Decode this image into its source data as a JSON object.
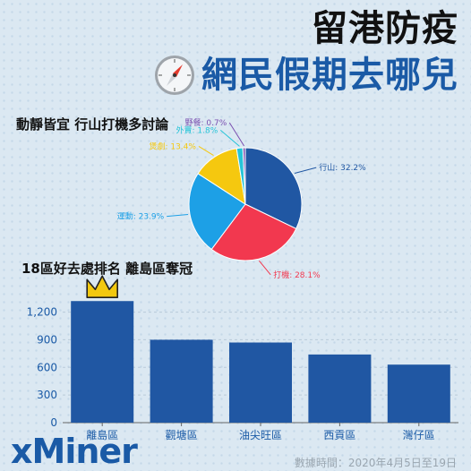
{
  "header": {
    "title_line1": "留港防疫",
    "title_line2": "網民假期去哪兒"
  },
  "icon": "compass-icon",
  "colors": {
    "accent": "#1a5aa6",
    "bar": "#2057a3",
    "crown": "#f2c80f"
  },
  "chart_data": [
    {
      "type": "pie",
      "title": "動靜皆宜 行山打機多討論",
      "slices": [
        {
          "label": "行山",
          "value": 32.2,
          "display": "行山: 32.2%",
          "color": "#2057a3"
        },
        {
          "label": "打機",
          "value": 28.1,
          "display": "打機: 28.1%",
          "color": "#f2384f"
        },
        {
          "label": "運動",
          "value": 23.9,
          "display": "運動: 23.9%",
          "color": "#1da0e6"
        },
        {
          "label": "煲劇",
          "value": 13.4,
          "display": "煲劇: 13.4%",
          "color": "#f5c80f"
        },
        {
          "label": "外賣",
          "value": 1.8,
          "display": "外賣: 1.8%",
          "color": "#26c4d8"
        },
        {
          "label": "野餐",
          "value": 0.7,
          "display": "野餐: 0.7%",
          "color": "#7a4fb0"
        }
      ]
    },
    {
      "type": "bar",
      "title": "18區好去處排名 離島區奪冠",
      "categories": [
        "離島區",
        "觀塘區",
        "油尖旺區",
        "西貢區",
        "灣仔區"
      ],
      "values": [
        1320,
        900,
        870,
        740,
        630
      ],
      "ylim": [
        0,
        1400
      ],
      "yticks": [
        0,
        300,
        600,
        900,
        1200
      ],
      "ytick_labels": [
        "0",
        "300",
        "600",
        "900",
        "1,200"
      ],
      "grid": true
    }
  ],
  "footer": {
    "brand": "xMiner",
    "note": "數據時間：2020年4月5日至19日"
  }
}
